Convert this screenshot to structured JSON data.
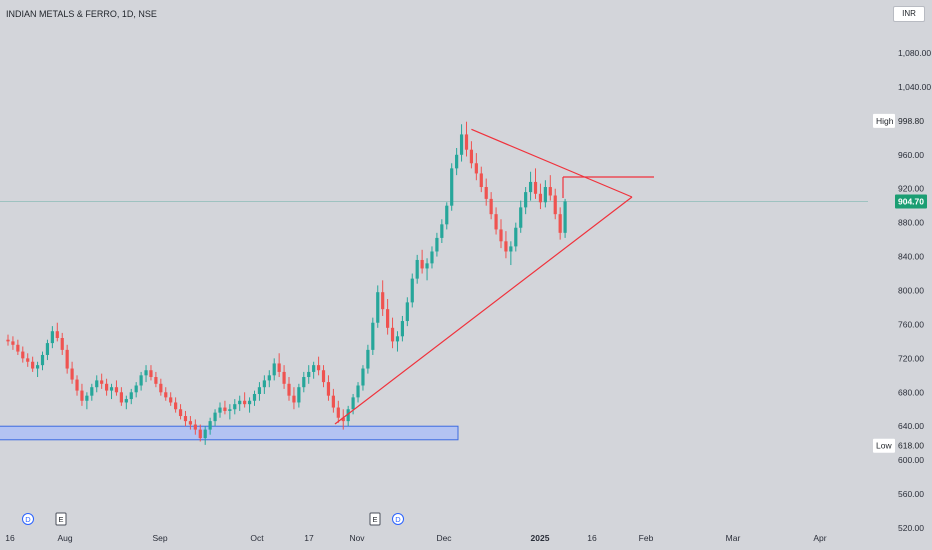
{
  "header": {
    "symbol_title": "INDIAN METALS & FERRO, 1D, NSE",
    "currency": "INR"
  },
  "colors": {
    "up": "#26a69a",
    "down": "#ef5350",
    "trendline": "#f0323c",
    "support_zone": "#b3c3f2",
    "support_border": "#3d6be0",
    "last_price_bg": "#1b9e73"
  },
  "chart_data": {
    "type": "candlestick",
    "title": "INDIAN METALS & FERRO, 1D, NSE",
    "ylim": [
      510,
      1120
    ],
    "grid": false,
    "y_ticks": [
      "1,080.00",
      "1,040.00",
      "960.00",
      "920.00",
      "880.00",
      "840.00",
      "800.00",
      "760.00",
      "720.00",
      "680.00",
      "640.00",
      "600.00",
      "560.00",
      "520.00"
    ],
    "x_ticks": [
      "16",
      "Aug",
      "Sep",
      "Oct",
      "17",
      "Nov",
      "Dec",
      "2025",
      "16",
      "Feb",
      "Mar",
      "Apr"
    ],
    "price_tags": [
      {
        "label": "High",
        "value": "998.80"
      },
      {
        "label": "Low",
        "value": "618.00"
      }
    ],
    "last_price": "904.70",
    "event_markers": [
      {
        "label": "D",
        "date": "Jul-24"
      },
      {
        "label": "E",
        "date": "Aug"
      },
      {
        "label": "E",
        "date": "Nov"
      },
      {
        "label": "D",
        "date": "Nov"
      }
    ],
    "ohlc": [
      [
        742,
        748,
        735,
        740
      ],
      [
        740,
        746,
        730,
        736
      ],
      [
        736,
        742,
        724,
        728
      ],
      [
        728,
        734,
        715,
        720
      ],
      [
        720,
        726,
        710,
        716
      ],
      [
        716,
        722,
        704,
        708
      ],
      [
        708,
        716,
        698,
        712
      ],
      [
        712,
        728,
        706,
        724
      ],
      [
        724,
        742,
        718,
        738
      ],
      [
        738,
        758,
        732,
        752
      ],
      [
        752,
        762,
        740,
        744
      ],
      [
        744,
        750,
        724,
        730
      ],
      [
        730,
        736,
        702,
        708
      ],
      [
        708,
        716,
        690,
        695
      ],
      [
        695,
        700,
        676,
        682
      ],
      [
        682,
        690,
        664,
        670
      ],
      [
        670,
        680,
        660,
        676
      ],
      [
        676,
        690,
        670,
        686
      ],
      [
        686,
        700,
        680,
        694
      ],
      [
        694,
        702,
        684,
        690
      ],
      [
        690,
        696,
        676,
        682
      ],
      [
        682,
        690,
        672,
        686
      ],
      [
        686,
        694,
        676,
        680
      ],
      [
        680,
        686,
        664,
        668
      ],
      [
        668,
        676,
        660,
        672
      ],
      [
        672,
        684,
        666,
        680
      ],
      [
        680,
        692,
        674,
        688
      ],
      [
        688,
        704,
        682,
        700
      ],
      [
        700,
        712,
        692,
        706
      ],
      [
        706,
        712,
        694,
        698
      ],
      [
        698,
        704,
        686,
        690
      ],
      [
        690,
        696,
        676,
        680
      ],
      [
        680,
        686,
        670,
        674
      ],
      [
        674,
        680,
        664,
        668
      ],
      [
        668,
        674,
        656,
        660
      ],
      [
        660,
        666,
        648,
        652
      ],
      [
        652,
        658,
        640,
        646
      ],
      [
        646,
        652,
        636,
        642
      ],
      [
        642,
        648,
        630,
        636
      ],
      [
        636,
        642,
        622,
        626
      ],
      [
        626,
        640,
        618,
        636
      ],
      [
        636,
        650,
        630,
        646
      ],
      [
        646,
        660,
        640,
        656
      ],
      [
        656,
        668,
        650,
        662
      ],
      [
        662,
        670,
        654,
        658
      ],
      [
        658,
        666,
        648,
        660
      ],
      [
        660,
        672,
        654,
        666
      ],
      [
        666,
        676,
        658,
        670
      ],
      [
        670,
        680,
        662,
        666
      ],
      [
        666,
        674,
        656,
        670
      ],
      [
        670,
        682,
        664,
        678
      ],
      [
        678,
        692,
        670,
        686
      ],
      [
        686,
        700,
        678,
        694
      ],
      [
        694,
        706,
        686,
        700
      ],
      [
        700,
        720,
        694,
        714
      ],
      [
        714,
        726,
        698,
        704
      ],
      [
        704,
        712,
        684,
        690
      ],
      [
        690,
        698,
        670,
        676
      ],
      [
        676,
        686,
        660,
        668
      ],
      [
        668,
        690,
        662,
        686
      ],
      [
        686,
        704,
        680,
        698
      ],
      [
        698,
        712,
        690,
        704
      ],
      [
        704,
        716,
        696,
        712
      ],
      [
        712,
        722,
        700,
        706
      ],
      [
        706,
        712,
        686,
        692
      ],
      [
        692,
        700,
        670,
        676
      ],
      [
        676,
        684,
        656,
        662
      ],
      [
        662,
        670,
        644,
        650
      ],
      [
        650,
        660,
        636,
        646
      ],
      [
        646,
        664,
        640,
        660
      ],
      [
        660,
        678,
        654,
        674
      ],
      [
        674,
        692,
        668,
        688
      ],
      [
        688,
        712,
        682,
        708
      ],
      [
        708,
        736,
        702,
        730
      ],
      [
        730,
        768,
        724,
        762
      ],
      [
        762,
        806,
        756,
        798
      ],
      [
        798,
        812,
        770,
        778
      ],
      [
        778,
        790,
        748,
        756
      ],
      [
        756,
        768,
        732,
        740
      ],
      [
        740,
        752,
        728,
        746
      ],
      [
        746,
        770,
        740,
        764
      ],
      [
        764,
        792,
        758,
        786
      ],
      [
        786,
        820,
        780,
        814
      ],
      [
        814,
        842,
        808,
        836
      ],
      [
        836,
        848,
        820,
        826
      ],
      [
        826,
        838,
        812,
        832
      ],
      [
        832,
        852,
        826,
        846
      ],
      [
        846,
        868,
        840,
        862
      ],
      [
        862,
        884,
        856,
        878
      ],
      [
        878,
        904,
        872,
        900
      ],
      [
        900,
        950,
        894,
        944
      ],
      [
        944,
        968,
        936,
        960
      ],
      [
        960,
        996,
        952,
        984
      ],
      [
        984,
        999,
        958,
        966
      ],
      [
        966,
        976,
        944,
        950
      ],
      [
        950,
        962,
        930,
        938
      ],
      [
        938,
        946,
        916,
        922
      ],
      [
        922,
        932,
        900,
        908
      ],
      [
        908,
        916,
        884,
        890
      ],
      [
        890,
        898,
        866,
        872
      ],
      [
        872,
        884,
        850,
        858
      ],
      [
        858,
        870,
        838,
        846
      ],
      [
        846,
        858,
        830,
        852
      ],
      [
        852,
        880,
        846,
        874
      ],
      [
        874,
        906,
        868,
        898
      ],
      [
        898,
        922,
        890,
        916
      ],
      [
        916,
        940,
        906,
        928
      ],
      [
        928,
        944,
        908,
        914
      ],
      [
        914,
        926,
        896,
        904
      ],
      [
        904,
        930,
        898,
        922
      ],
      [
        922,
        936,
        906,
        912
      ],
      [
        912,
        920,
        884,
        890
      ],
      [
        890,
        898,
        860,
        868
      ],
      [
        868,
        908,
        862,
        905
      ]
    ],
    "annotations": {
      "triangle_upper": [
        {
          "bar": 94,
          "price": 990
        },
        {
          "bar": 130,
          "price": 908
        }
      ],
      "triangle_lower": [
        {
          "bar": 66,
          "price": 628
        },
        {
          "bar": 130,
          "price": 908
        }
      ],
      "resistance_line": {
        "from_bar": 113,
        "to_bar": 130,
        "price": 930
      },
      "support_zone": {
        "price_low": 624,
        "price_high": 640,
        "from_bar": 0,
        "to_bar": 93
      }
    }
  }
}
